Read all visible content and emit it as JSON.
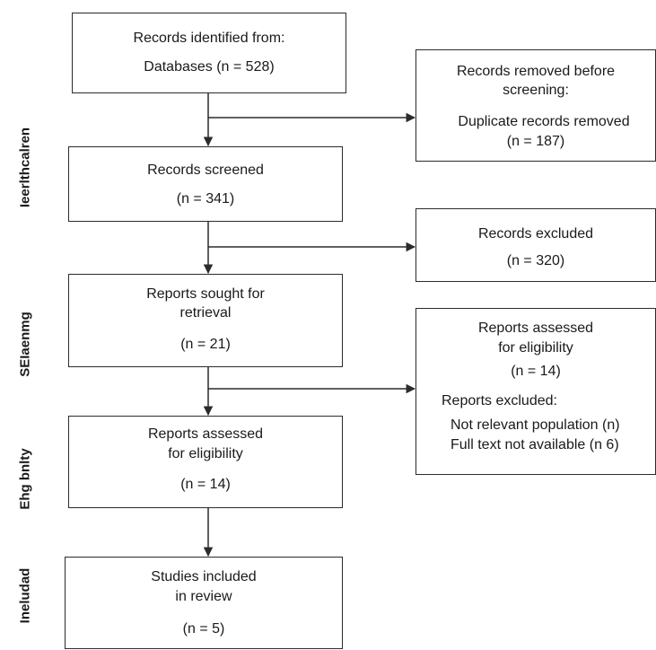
{
  "phases": [
    "Ieerlthcalren",
    "SEIaenmg",
    "Ehg bnlty",
    "Ineludad"
  ],
  "main_boxes": [
    {
      "lines": [
        "Records identified from:",
        "Databases (n = 528)"
      ]
    },
    {
      "lines": [
        "Records screened",
        "(n = 341)"
      ]
    },
    {
      "lines": [
        "Reports sought for",
        "retrieval",
        "(n = 21)"
      ]
    },
    {
      "lines": [
        "Reports assessed",
        "for eligibility",
        "(n = 14)"
      ]
    },
    {
      "lines": [
        "Studies included",
        "in review",
        "(n = 5)"
      ]
    }
  ],
  "side_boxes": [
    {
      "lines": [
        "Records removed before",
        "screening:",
        "Duplicate records removed",
        "(n = 187)"
      ]
    },
    {
      "lines": [
        "Records excluded",
        "(n = 320)"
      ]
    },
    {
      "lines": [
        "Reports assessed",
        "for eligibility",
        "(n = 14)",
        "Reports excluded:",
        "Not relevant population (n)",
        "Full text not available (n 6)"
      ]
    }
  ]
}
